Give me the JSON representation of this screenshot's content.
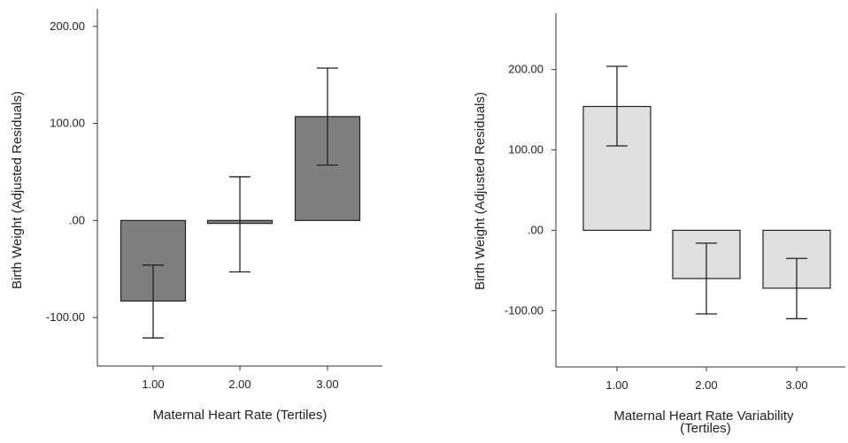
{
  "chart_data": [
    {
      "type": "bar",
      "categories": [
        "1.00",
        "2.00",
        "3.00"
      ],
      "values": [
        -83,
        -3,
        107
      ],
      "error_low": [
        -121,
        -53,
        57
      ],
      "error_high": [
        -46,
        45,
        157
      ],
      "xlabel": "Maternal Heart Rate (Tertiles)",
      "ylabel": "Birth Weight (Adjusted Residuals)",
      "ylim": [
        -150,
        218
      ],
      "yticks": [
        -100,
        0,
        100,
        200
      ],
      "ytick_labels": [
        "-100.00",
        ".00",
        "100.00",
        "200.00"
      ],
      "bar_color": "#7f7f7f",
      "grid": false
    },
    {
      "type": "bar",
      "categories": [
        "1.00",
        "2.00",
        "3.00"
      ],
      "values": [
        154,
        -60,
        -72
      ],
      "error_low": [
        105,
        -104,
        -110
      ],
      "error_high": [
        204,
        -16,
        -35
      ],
      "xlabel": "Maternal Heart Rate Variability (Tertiles)",
      "ylabel": "Birth Weight (Adjusted Residuals)",
      "ylim": [
        -170,
        270
      ],
      "yticks": [
        -100,
        0,
        100,
        200
      ],
      "ytick_labels": [
        "-100.00",
        ".00",
        "100.00",
        "200.00"
      ],
      "bar_color": "#e0e0e0",
      "grid": false
    }
  ]
}
